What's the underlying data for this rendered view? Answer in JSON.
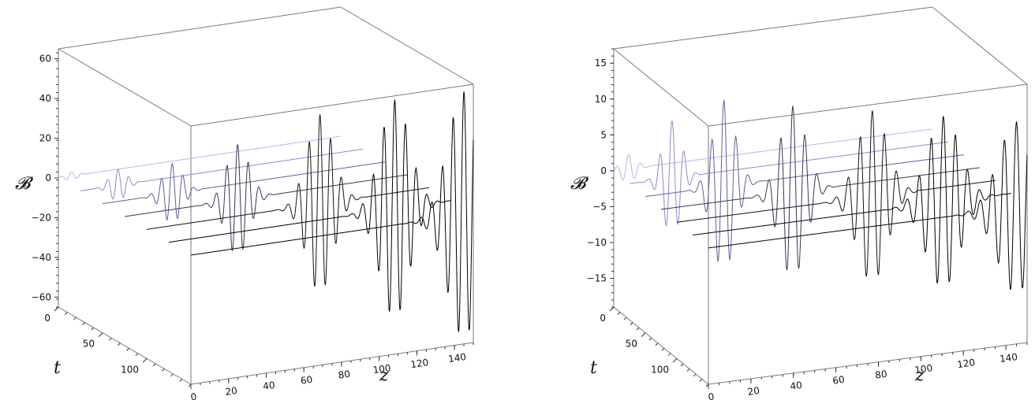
{
  "chart_data": [
    {
      "type": "line",
      "view": "3d",
      "axes": {
        "x": {
          "label": "z",
          "range": [
            0,
            150
          ],
          "ticks": [
            0,
            20,
            40,
            60,
            80,
            100,
            120,
            140
          ]
        },
        "y": {
          "label": "t",
          "range": [
            0,
            150
          ],
          "ticks": [
            0,
            50,
            100
          ]
        },
        "z": {
          "label": "𝓑",
          "range": [
            -65,
            65
          ],
          "ticks": [
            -60,
            -40,
            -20,
            0,
            20,
            40,
            60
          ]
        }
      },
      "series": [
        {
          "t": 0,
          "center_z": 7,
          "amplitude": 2,
          "color": "#b4b6ee"
        },
        {
          "t": 25,
          "center_z": 20,
          "amplitude": 8,
          "color": "#8a8cc8"
        },
        {
          "t": 50,
          "center_z": 37,
          "amplitude": 15,
          "color": "#5e6196"
        },
        {
          "t": 75,
          "center_z": 60,
          "amplitude": 28,
          "color": "#353650"
        },
        {
          "t": 100,
          "center_z": 92,
          "amplitude": 45,
          "color": "#141414"
        },
        {
          "t": 125,
          "center_z": 120,
          "amplitude": 55,
          "color": "#000000"
        },
        {
          "t": 150,
          "center_z": 145,
          "amplitude": 62,
          "color": "#000000"
        }
      ]
    },
    {
      "type": "line",
      "view": "3d",
      "axes": {
        "x": {
          "label": "z",
          "range": [
            0,
            150
          ],
          "ticks": [
            0,
            20,
            40,
            60,
            80,
            100,
            120,
            140
          ]
        },
        "y": {
          "label": "t",
          "range": [
            0,
            150
          ],
          "ticks": [
            0,
            50,
            100
          ]
        },
        "z": {
          "label": "𝓑",
          "range": [
            -19,
            17
          ],
          "ticks": [
            -15,
            -10,
            -5,
            0,
            5,
            10,
            15
          ]
        }
      },
      "series": [
        {
          "t": 0,
          "center_z": 7,
          "amplitude": 2,
          "color": "#b4b6ee"
        },
        {
          "t": 25,
          "center_z": 20,
          "amplitude": 8,
          "color": "#8a8cc8"
        },
        {
          "t": 50,
          "center_z": 37,
          "amplitude": 12,
          "color": "#5e6196"
        },
        {
          "t": 75,
          "center_z": 62,
          "amplitude": 12,
          "color": "#353650"
        },
        {
          "t": 100,
          "center_z": 92,
          "amplitude": 12,
          "color": "#141414"
        },
        {
          "t": 125,
          "center_z": 118,
          "amplitude": 12,
          "color": "#000000"
        },
        {
          "t": 150,
          "center_z": 145,
          "amplitude": 12,
          "color": "#000000"
        }
      ]
    }
  ]
}
